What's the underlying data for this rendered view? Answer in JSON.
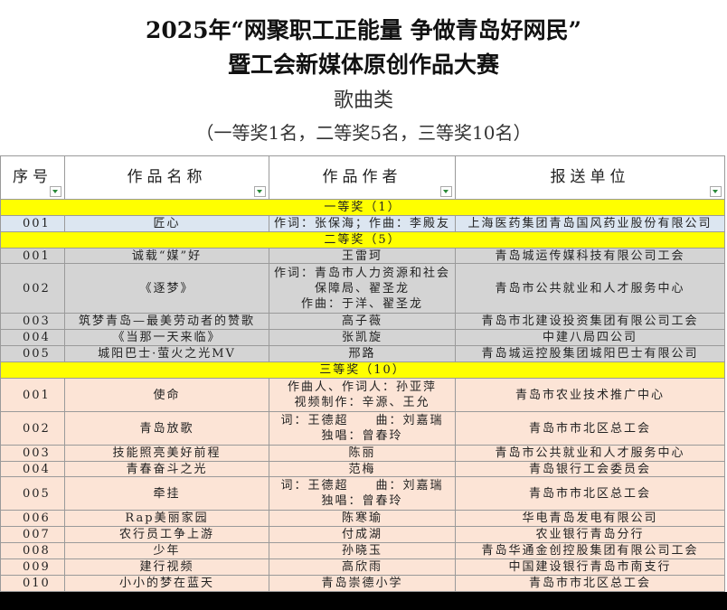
{
  "header": {
    "title_line1": "2025年“网聚职工正能量 争做青岛好网民”",
    "title_line2": "暨工会新媒体原创作品大赛",
    "category": "歌曲类",
    "note": "（一等奖1名，二等奖5名，三等奖10名）"
  },
  "table": {
    "columns": [
      "序号",
      "作品名称",
      "作品作者",
      "报送单位"
    ],
    "sections": [
      {
        "label": "一等奖（1）",
        "rows": [
          [
            "001",
            "匠心",
            [
              "作词：张保海；作曲：李殿友"
            ],
            "上海医药集团青岛国风药业股份有限公司"
          ]
        ]
      },
      {
        "label": "二等奖（5）",
        "rows": [
          [
            "001",
            "诚载“媒”好",
            [
              "王雷珂"
            ],
            "青岛城运传媒科技有限公司工会"
          ],
          [
            "002",
            "《逐梦》",
            [
              "作词：青岛市人力资源和社会保障局、翟圣龙",
              "作曲：于洋、翟圣龙"
            ],
            "青岛市公共就业和人才服务中心"
          ],
          [
            "003",
            "筑梦青岛—最美劳动者的赞歌",
            [
              "高子薇"
            ],
            "青岛市北建设投资集团有限公司工会"
          ],
          [
            "004",
            "《当那一天来临》",
            [
              "张凯旋"
            ],
            "中建八局四公司"
          ],
          [
            "005",
            "城阳巴士·萤火之光MV",
            [
              "邢路"
            ],
            "青岛城运控股集团城阳巴士有限公司"
          ]
        ]
      },
      {
        "label": "三等奖（10）",
        "rows": [
          [
            "001",
            "使命",
            [
              "作曲人、作词人：孙亚萍",
              "视频制作：辛源、王允"
            ],
            "青岛市农业技术推广中心"
          ],
          [
            "002",
            "青岛放歌",
            [
              "词：王德超　　曲：刘嘉瑞",
              "独唱：曾春玲"
            ],
            "青岛市市北区总工会"
          ],
          [
            "003",
            "技能照亮美好前程",
            [
              "陈丽"
            ],
            "青岛市公共就业和人才服务中心"
          ],
          [
            "004",
            "青春奋斗之光",
            [
              "范梅"
            ],
            "青岛银行工会委员会"
          ],
          [
            "005",
            "牵挂",
            [
              "词：王德超　　曲：刘嘉瑞",
              "独唱：曾春玲"
            ],
            "青岛市市北区总工会"
          ],
          [
            "006",
            "Rap美丽家园",
            [
              "陈寒瑜"
            ],
            "华电青岛发电有限公司"
          ],
          [
            "007",
            "农行员工争上游",
            [
              "付成湖"
            ],
            "农业银行青岛分行"
          ],
          [
            "008",
            "少年",
            [
              "孙晓玉"
            ],
            "青岛华通金创控股集团有限公司工会"
          ],
          [
            "009",
            "建行视频",
            [
              "高欣雨"
            ],
            "中国建设银行青岛市南支行"
          ],
          [
            "010",
            "小小的梦在蓝天",
            [
              "青岛崇德小学"
            ],
            "青岛市市北区总工会"
          ]
        ]
      }
    ]
  }
}
